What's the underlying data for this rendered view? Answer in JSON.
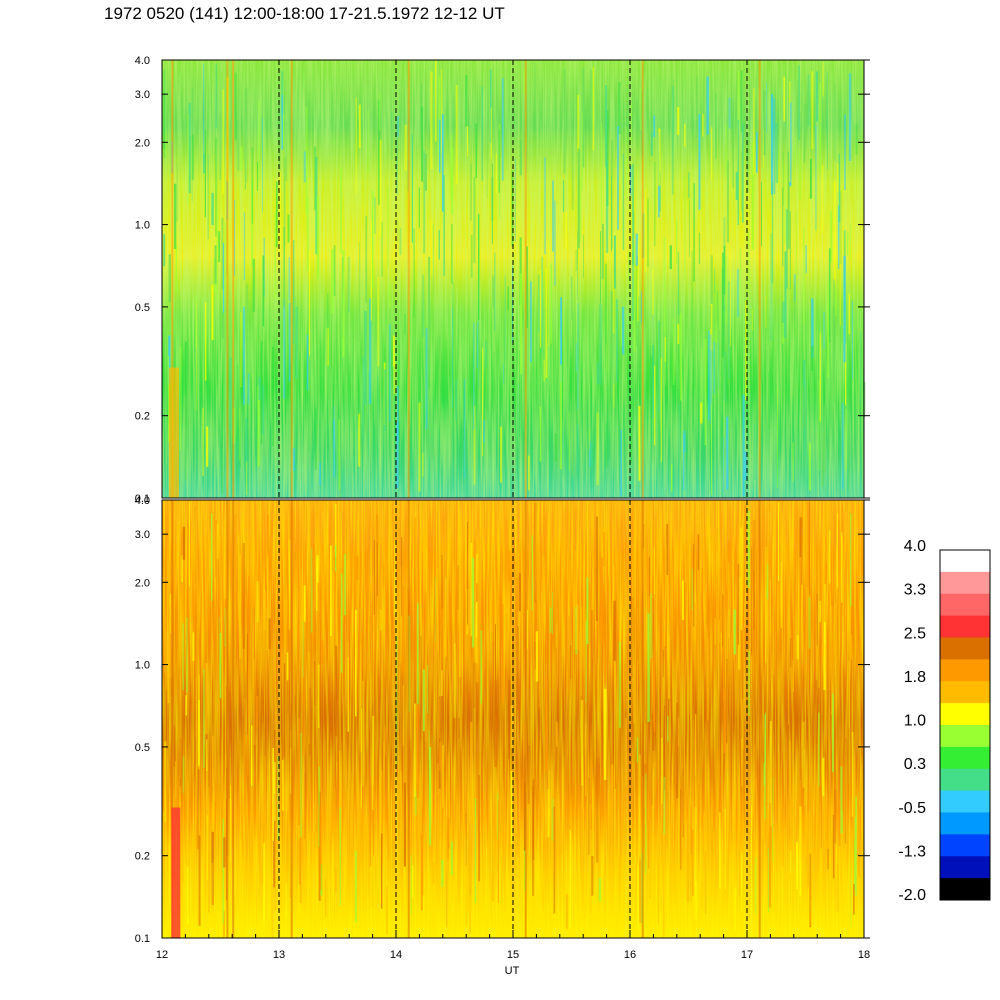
{
  "title": "1972 0520 (141) 12:00-18:00 17-21.5.1972  12-12 UT",
  "chart_data": {
    "type": "heatmap",
    "x_axis": {
      "label": "UT",
      "range": [
        12,
        18
      ],
      "major_ticks": [
        12,
        13,
        14,
        15,
        16,
        17,
        18
      ],
      "tick_labels": [
        "12",
        "13",
        "14",
        "15",
        "16",
        "17",
        "18"
      ],
      "minor_tick_step": 0.2,
      "dashed_gridlines_at": [
        13,
        14,
        15,
        16,
        17
      ]
    },
    "y_axis": {
      "scale": "log",
      "range": [
        0.1,
        4.0
      ],
      "ticks": [
        0.1,
        0.2,
        0.5,
        1.0,
        2.0,
        3.0,
        4.0
      ],
      "tick_labels": [
        "0.1",
        "0.2",
        "0.5",
        "1.0",
        "2.0",
        "3.0",
        "4.0"
      ]
    },
    "panels": [
      {
        "id": "upper",
        "dominant_levels": "0.3 to 1.8",
        "notes": "green/cyan at low frequencies, yellow-green band near 0.6-1.2, green above 2.0"
      },
      {
        "id": "lower",
        "dominant_levels": "1.0 to 2.5",
        "notes": "orange/dark-orange band near 0.5-0.8, yellow at lowest frequencies, red spike near 12.1 UT"
      }
    ],
    "colorbar": {
      "labels": [
        "4.0",
        "3.3",
        "2.5",
        "1.8",
        "1.0",
        "0.3",
        "-0.5",
        "-1.3",
        "-2.0"
      ],
      "colors": [
        "#ffffff",
        "#ff9999",
        "#ff6666",
        "#ff3333",
        "#d97000",
        "#ff9900",
        "#ffbb00",
        "#ffff00",
        "#99ff33",
        "#33ee33",
        "#44dd88",
        "#33ccff",
        "#0099ff",
        "#0044ff",
        "#0011bb",
        "#000000"
      ]
    }
  }
}
